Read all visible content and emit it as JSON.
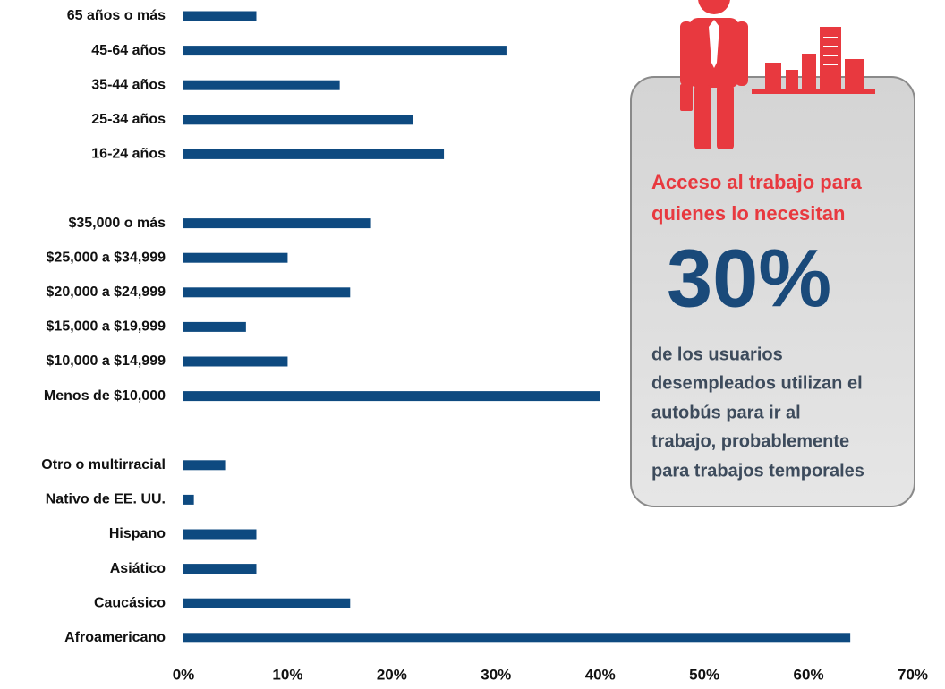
{
  "chart_data": {
    "type": "barh",
    "categories": [
      "65 años o más",
      "45-64 años",
      "35-44 años",
      "25-34 años",
      "16-24 años",
      null,
      "$35,000 o más",
      "$25,000 a $34,999",
      "$20,000 a $24,999",
      "$15,000 a $19,999",
      "$10,000 a $14,999",
      "Menos de $10,000",
      null,
      "Otro o multirracial",
      "Nativo de EE. UU.",
      "Hispano",
      "Asiático",
      "Caucásico",
      "Afroamericano"
    ],
    "values": [
      7,
      31,
      15,
      22,
      25,
      null,
      18,
      10,
      16,
      6,
      10,
      40,
      null,
      4,
      1,
      7,
      7,
      16,
      64
    ],
    "color": "#0e4a80",
    "xlim": [
      0,
      70
    ],
    "xticks": [
      {
        "value": 0,
        "label": "0%"
      },
      {
        "value": 10,
        "label": "10%"
      },
      {
        "value": 20,
        "label": "20%"
      },
      {
        "value": 30,
        "label": "30%"
      },
      {
        "value": 40,
        "label": "40%"
      },
      {
        "value": 50,
        "label": "50%"
      },
      {
        "value": 60,
        "label": "60%"
      },
      {
        "value": 70,
        "label": "70%"
      }
    ],
    "grid": false,
    "annotation": {
      "heading": [
        "Acceso al trabajo para",
        "quienes lo necesitan"
      ],
      "stat": "30%",
      "text": [
        "de los usuarios",
        "desempleados utilizan el",
        "autobús para ir al",
        "trabajo, probablemente",
        "para trabajos temporales"
      ]
    }
  }
}
